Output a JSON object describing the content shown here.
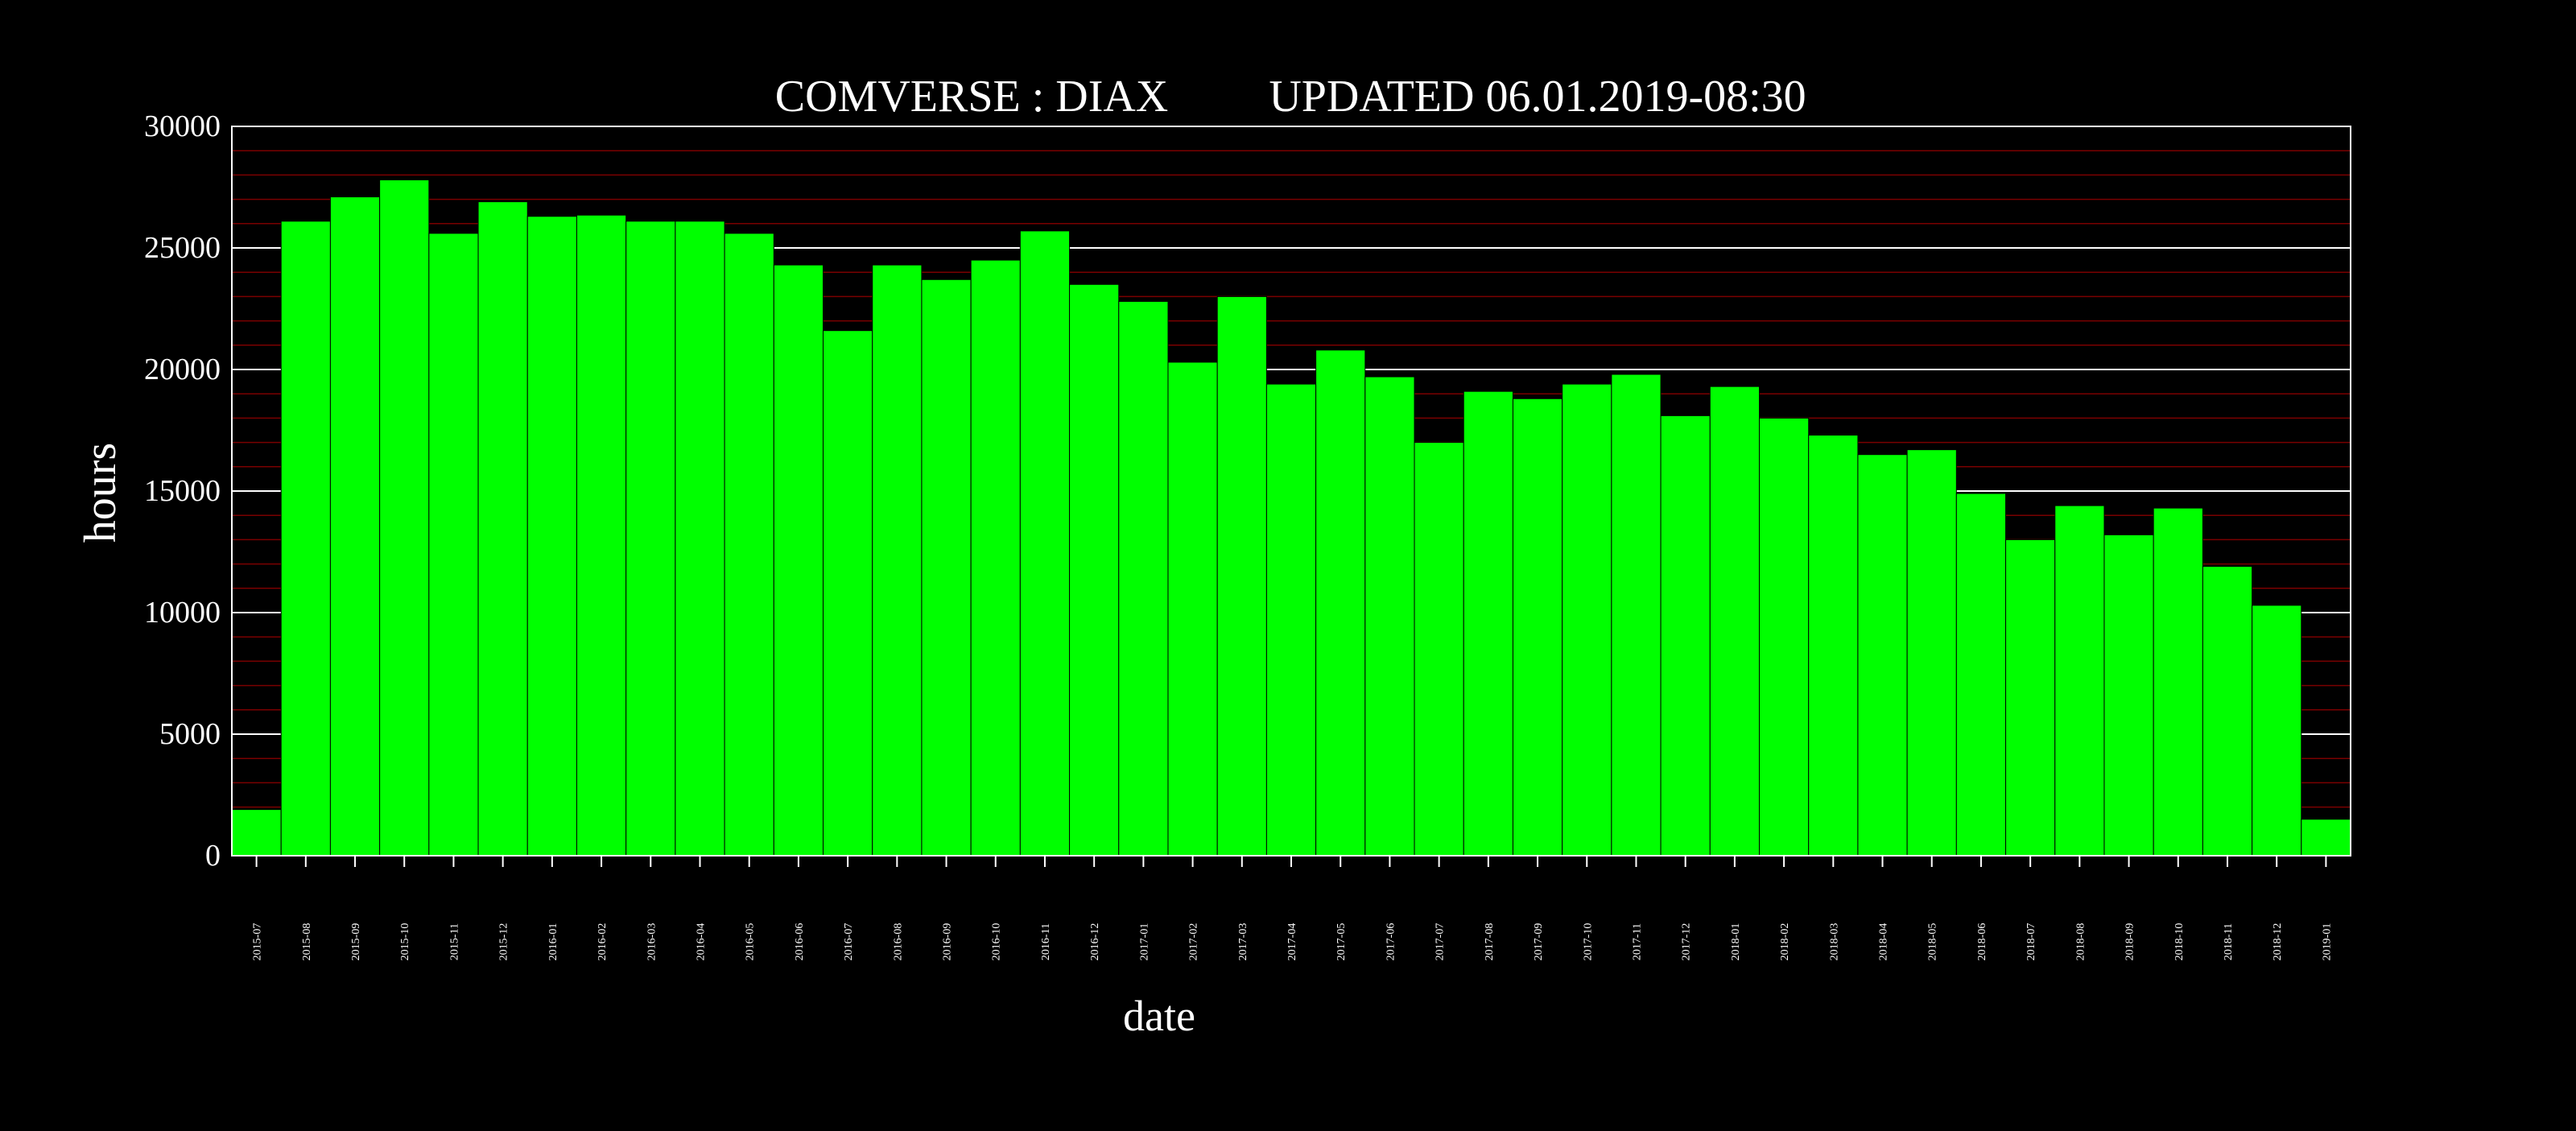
{
  "chart_data": {
    "type": "bar",
    "title": "COMVERSE : DIAX",
    "updated": "UPDATED 06.01.2019-08:30",
    "xlabel": "date",
    "ylabel": "hours",
    "ylim": [
      0,
      30000
    ],
    "y_ticks": [
      0,
      5000,
      10000,
      15000,
      20000,
      25000,
      30000
    ],
    "y_tick_labels": [
      "0",
      "5000",
      "10000",
      "15000",
      "20000",
      "25000",
      "30000"
    ],
    "minor_grid_step": 1000,
    "grid": true,
    "colors": {
      "background": "#000000",
      "bar": "#00ff00",
      "bar_edge": "#000000",
      "major_grid": "#ffffff",
      "minor_grid": "#7a0000",
      "text": "#ffffff"
    },
    "categories": [
      "2015-07",
      "2015-08",
      "2015-09",
      "2015-10",
      "2015-11",
      "2015-12",
      "2016-01",
      "2016-02",
      "2016-03",
      "2016-04",
      "2016-05",
      "2016-06",
      "2016-07",
      "2016-08",
      "2016-09",
      "2016-10",
      "2016-11",
      "2016-12",
      "2017-01",
      "2017-02",
      "2017-03",
      "2017-04",
      "2017-05",
      "2017-06",
      "2017-07",
      "2017-08",
      "2017-09",
      "2017-10",
      "2017-11",
      "2017-12",
      "2018-01",
      "2018-02",
      "2018-03",
      "2018-04",
      "2018-05",
      "2018-06",
      "2018-07",
      "2018-08",
      "2018-09",
      "2018-10",
      "2018-11",
      "2018-12",
      "2019-01"
    ],
    "values": [
      1900,
      26100,
      27100,
      27800,
      25600,
      26900,
      26300,
      26350,
      26100,
      26100,
      25600,
      24300,
      21600,
      24300,
      23700,
      24500,
      25700,
      23500,
      22800,
      20300,
      23000,
      19400,
      20800,
      19700,
      17000,
      19100,
      18800,
      19400,
      19800,
      18100,
      19300,
      18000,
      17300,
      16500,
      16700,
      14900,
      13000,
      14400,
      13200,
      14300,
      11900,
      10300,
      1500
    ]
  }
}
